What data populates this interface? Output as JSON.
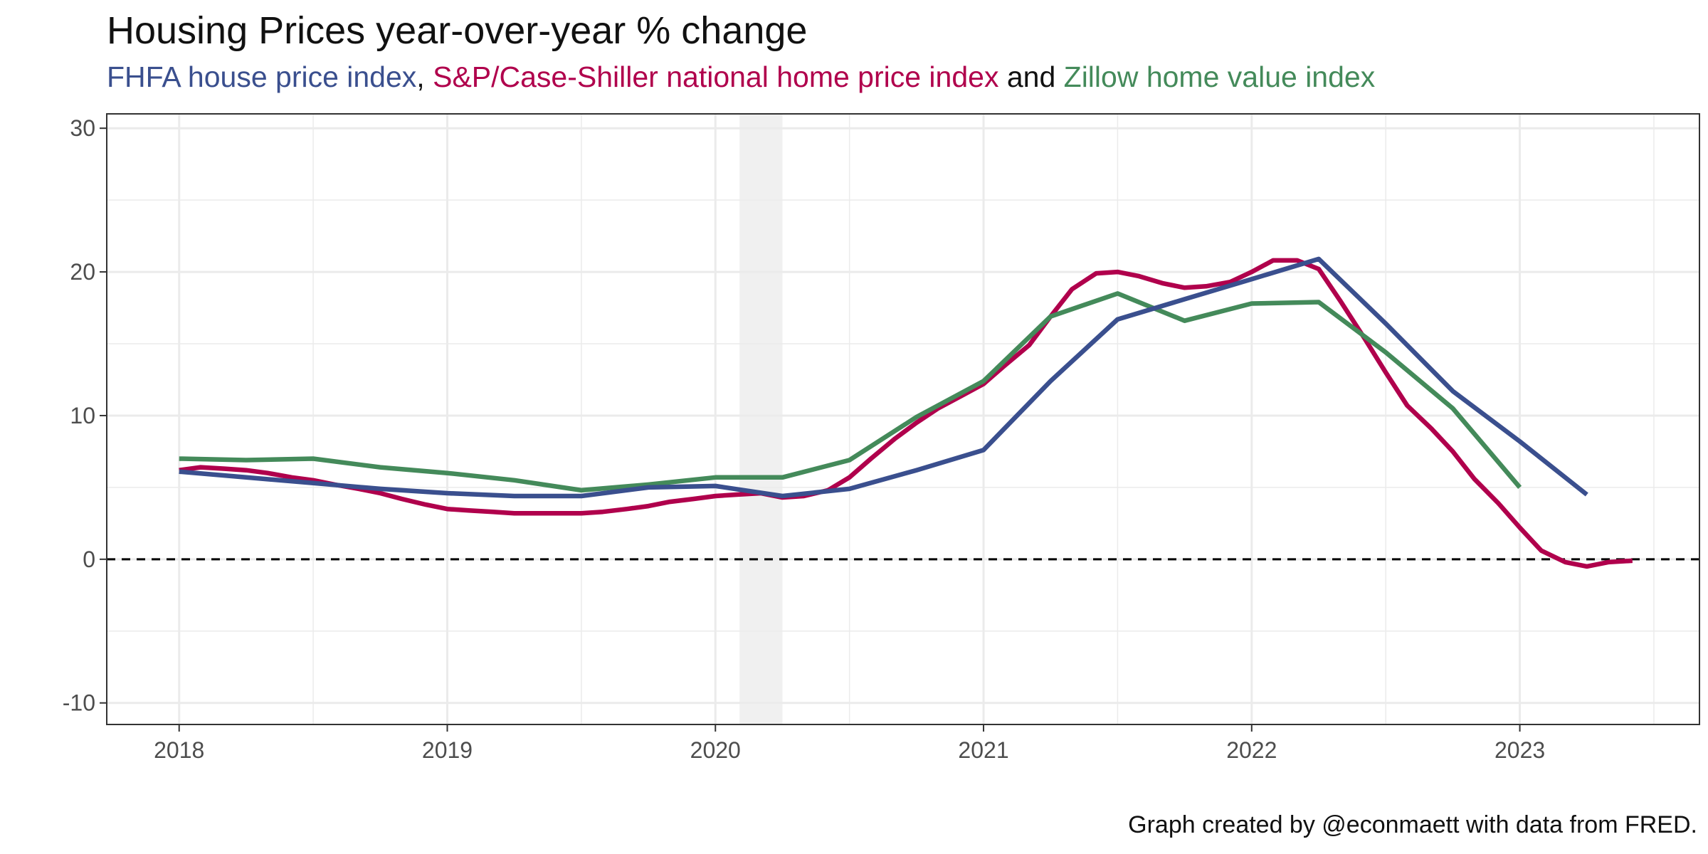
{
  "chart_data": {
    "type": "line",
    "title": "Housing Prices year-over-year % change",
    "subtitle_parts": [
      {
        "text": "FHFA house price index",
        "color": "#3a4f8e"
      },
      {
        "text": ", ",
        "color": "#111111"
      },
      {
        "text": "S&P/Case-Shiller national home price index",
        "color": "#b0004c"
      },
      {
        "text": " and ",
        "color": "#111111"
      },
      {
        "text": "Zillow home value index",
        "color": "#448a5a"
      }
    ],
    "caption": "Graph created by @econmaett with data from FRED.",
    "xlabel": "",
    "ylabel": "",
    "xlim": [
      2017.73,
      2023.67
    ],
    "ylim": [
      -11.5,
      31.0
    ],
    "x_ticks": [
      2018,
      2019,
      2020,
      2021,
      2022,
      2023
    ],
    "y_ticks": [
      -10,
      0,
      10,
      20,
      30
    ],
    "grid": true,
    "reference_line": {
      "y": 0,
      "style": "dashed"
    },
    "recession_shade": [
      2020.09,
      2020.25
    ],
    "series": [
      {
        "color": "#b0004c",
        "x": [
          2018.0,
          2018.08,
          2018.17,
          2018.25,
          2018.33,
          2018.42,
          2018.5,
          2018.58,
          2018.67,
          2018.75,
          2018.83,
          2018.92,
          2019.0,
          2019.08,
          2019.17,
          2019.25,
          2019.33,
          2019.42,
          2019.5,
          2019.58,
          2019.67,
          2019.75,
          2019.83,
          2019.92,
          2020.0,
          2020.08,
          2020.17,
          2020.25,
          2020.33,
          2020.42,
          2020.5,
          2020.58,
          2020.67,
          2020.75,
          2020.83,
          2020.92,
          2021.0,
          2021.08,
          2021.17,
          2021.25,
          2021.33,
          2021.42,
          2021.5,
          2021.58,
          2021.67,
          2021.75,
          2021.83,
          2021.92,
          2022.0,
          2022.08,
          2022.17,
          2022.25,
          2022.33,
          2022.42,
          2022.5,
          2022.58,
          2022.67,
          2022.75,
          2022.83,
          2022.92,
          2023.0,
          2023.08,
          2023.17,
          2023.25,
          2023.33,
          2023.42
        ],
        "values": [
          6.2,
          6.4,
          6.3,
          6.2,
          6.0,
          5.7,
          5.5,
          5.2,
          4.9,
          4.6,
          4.2,
          3.8,
          3.5,
          3.4,
          3.3,
          3.2,
          3.2,
          3.2,
          3.2,
          3.3,
          3.5,
          3.7,
          4.0,
          4.2,
          4.4,
          4.5,
          4.6,
          4.3,
          4.4,
          4.8,
          5.7,
          7.0,
          8.4,
          9.5,
          10.5,
          11.4,
          12.2,
          13.5,
          14.9,
          16.9,
          18.8,
          19.9,
          20.0,
          19.7,
          19.2,
          18.9,
          19.0,
          19.3,
          20.0,
          20.8,
          20.8,
          20.2,
          18.0,
          15.4,
          13.0,
          10.7,
          9.1,
          7.5,
          5.6,
          3.9,
          2.2,
          0.6,
          -0.2,
          -0.5,
          -0.2,
          -0.1
        ]
      },
      {
        "color": "#448a5a",
        "x": [
          2018.0,
          2018.25,
          2018.5,
          2018.75,
          2019.0,
          2019.25,
          2019.5,
          2019.75,
          2020.0,
          2020.25,
          2020.5,
          2020.75,
          2021.0,
          2021.25,
          2021.5,
          2021.75,
          2022.0,
          2022.25,
          2022.5,
          2022.75,
          2023.0
        ],
        "values": [
          7.0,
          6.9,
          7.0,
          6.4,
          6.0,
          5.5,
          4.8,
          5.2,
          5.7,
          5.7,
          6.9,
          9.9,
          12.4,
          16.9,
          18.5,
          16.6,
          17.8,
          17.9,
          14.4,
          10.5,
          5.0
        ]
      },
      {
        "color": "#3a4f8e",
        "x": [
          2018.0,
          2018.25,
          2018.5,
          2018.75,
          2019.0,
          2019.25,
          2019.5,
          2019.75,
          2020.0,
          2020.25,
          2020.5,
          2020.75,
          2021.0,
          2021.25,
          2021.5,
          2021.75,
          2022.0,
          2022.25,
          2022.5,
          2022.75,
          2023.0,
          2023.25
        ],
        "values": [
          6.1,
          5.7,
          5.3,
          4.9,
          4.6,
          4.4,
          4.4,
          5.0,
          5.1,
          4.4,
          4.9,
          6.2,
          7.6,
          12.4,
          16.7,
          18.1,
          19.5,
          20.9,
          16.4,
          11.7,
          8.2,
          4.5
        ]
      }
    ]
  }
}
